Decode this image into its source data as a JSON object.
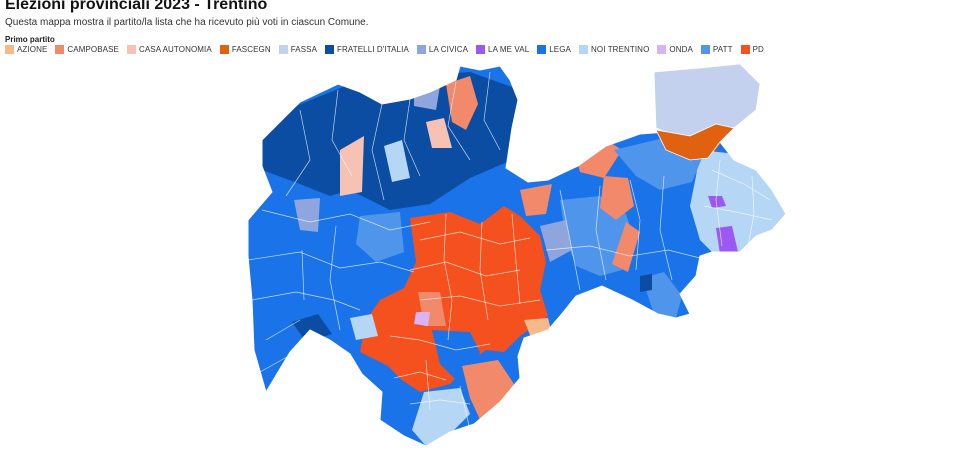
{
  "title": "Elezioni provinciali 2023 - Trentino",
  "subtitle": "Questa mappa mostra il partito/la lista che ha ricevuto più voti in ciascun Comune.",
  "legend": {
    "title": "Primo partito",
    "items": [
      {
        "label": "AZIONE",
        "color": "#f7b98a"
      },
      {
        "label": "CAMPOBASE",
        "color": "#f2896b"
      },
      {
        "label": "CASA AUTONOMIA",
        "color": "#f5c2b4"
      },
      {
        "label": "FASCEGN",
        "color": "#e0610f"
      },
      {
        "label": "FASSA",
        "color": "#c3d1ef"
      },
      {
        "label": "FRATELLI D'ITALIA",
        "color": "#0b4da2"
      },
      {
        "label": "LA CIVICA",
        "color": "#8fa5dd"
      },
      {
        "label": "LA ME VAL",
        "color": "#9b59f2"
      },
      {
        "label": "LEGA",
        "color": "#1a73e8"
      },
      {
        "label": "NOI TRENTINO",
        "color": "#b5d6f5"
      },
      {
        "label": "ONDA",
        "color": "#d9b3f3"
      },
      {
        "label": "PATT",
        "color": "#4f95ec"
      },
      {
        "label": "PD",
        "color": "#f4511e"
      }
    ]
  }
}
